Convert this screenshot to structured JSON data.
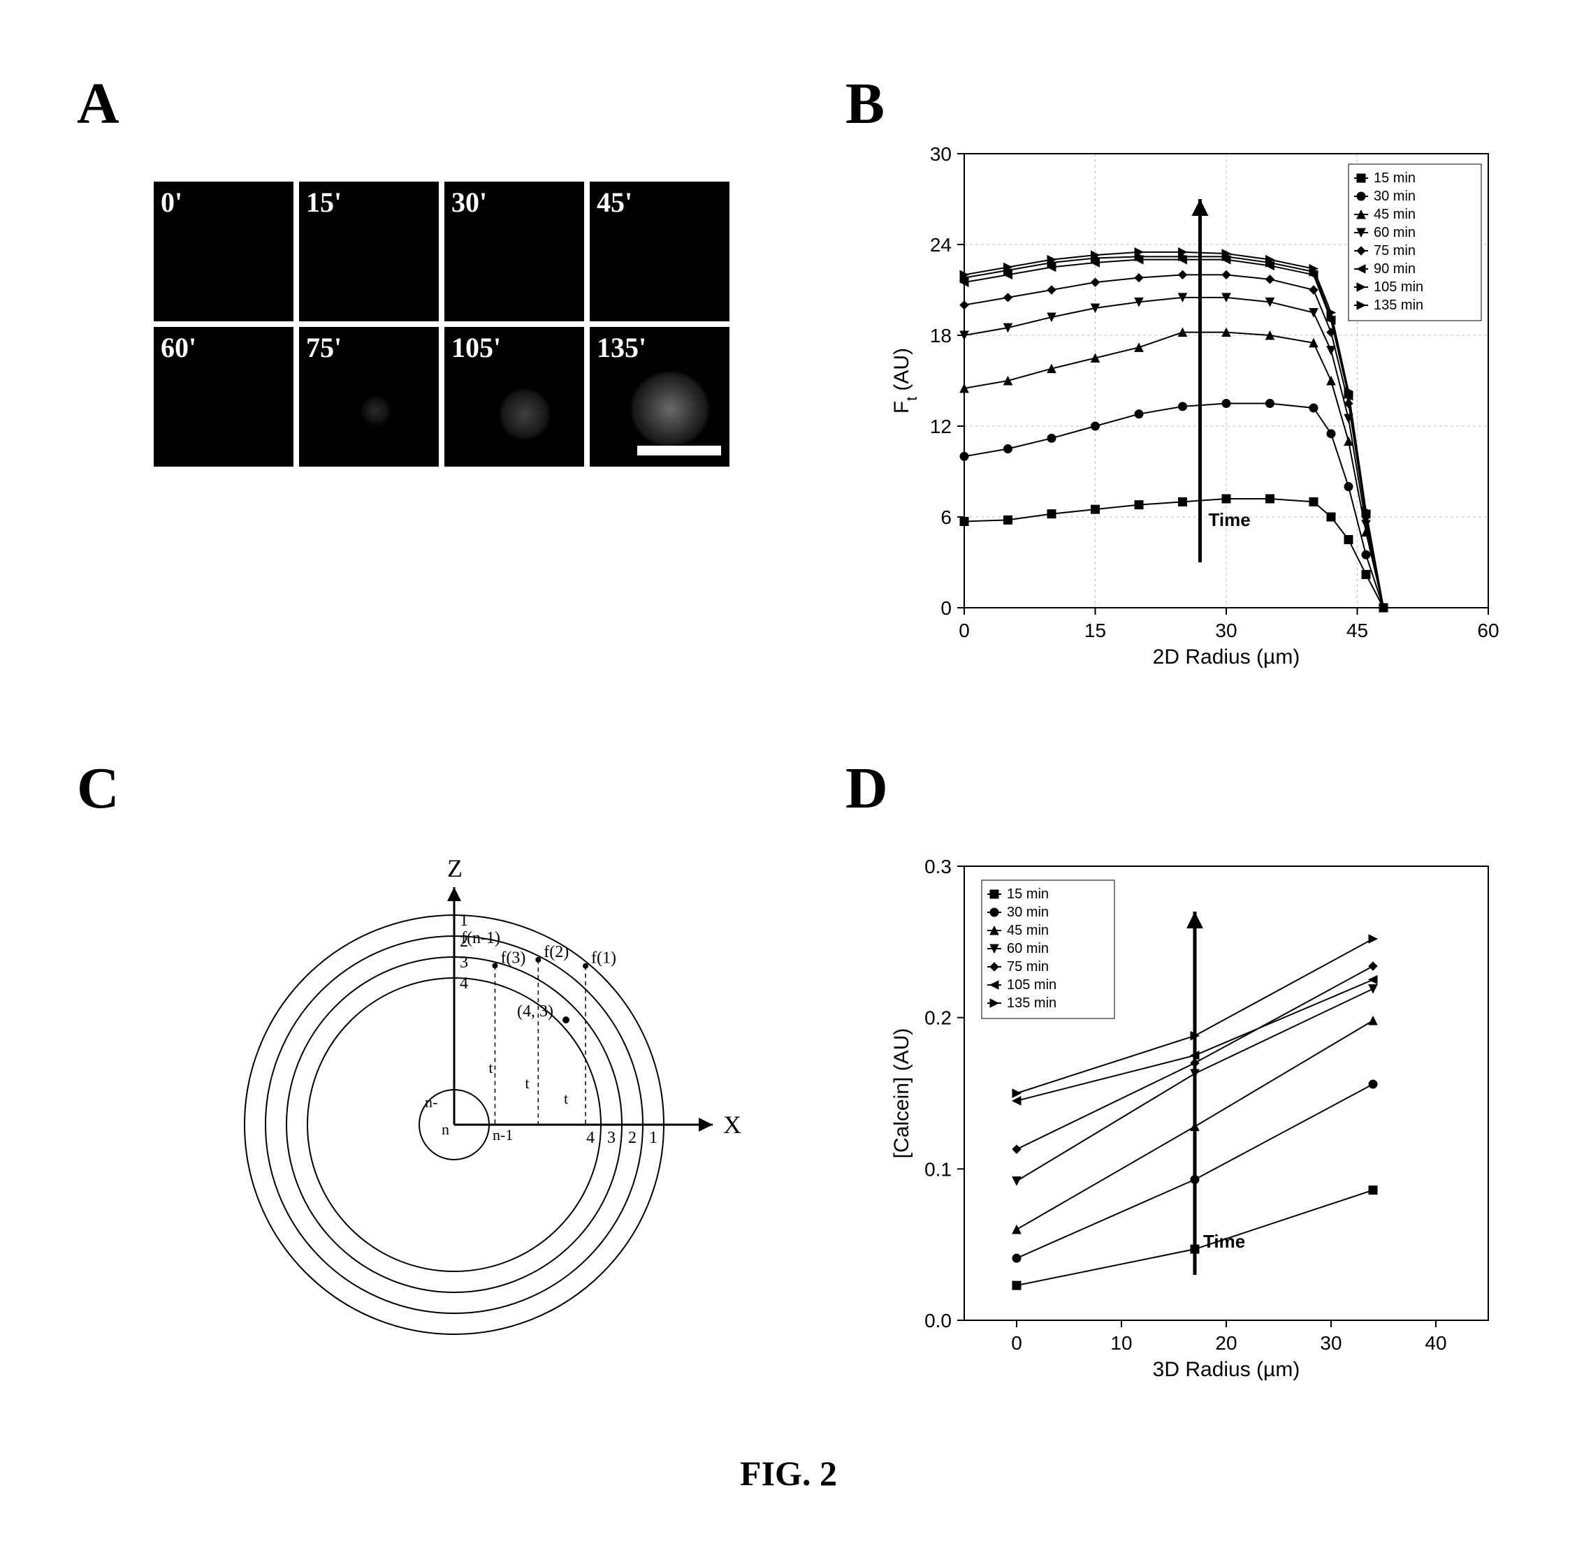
{
  "panels": {
    "A": "A",
    "B": "B",
    "C": "C",
    "D": "D"
  },
  "figure_caption": "FIG. 2",
  "panel_a": {
    "time_labels": [
      "0'",
      "15'",
      "30'",
      "45'",
      "60'",
      "75'",
      "105'",
      "135'"
    ],
    "cell_bg": "#000000",
    "label_color": "#ffffff",
    "label_fontsize": 40,
    "scalebar_color": "#ffffff"
  },
  "panel_b": {
    "type": "line",
    "xlabel": "2D Radius (µm)",
    "ylabel": "F_t (AU)",
    "label_fontsize": 30,
    "tick_fontsize": 28,
    "xlim": [
      0,
      60
    ],
    "ylim": [
      0,
      30
    ],
    "xticks": [
      0,
      15,
      30,
      45,
      60
    ],
    "yticks": [
      0,
      6,
      12,
      18,
      24,
      30
    ],
    "grid": true,
    "grid_color": "#c0c0c0",
    "background_color": "#ffffff",
    "time_annotation": "Time",
    "legend_items": [
      "15 min",
      "30 min",
      "45 min",
      "60 min",
      "75 min",
      "90 min",
      "105 min",
      "135 min"
    ],
    "legend_markers": [
      "square",
      "circle",
      "triangle-up",
      "triangle-down",
      "diamond",
      "triangle-left",
      "triangle-right",
      "triangle-right"
    ],
    "series": [
      {
        "name": "15 min",
        "marker": "square",
        "color": "#000000",
        "x": [
          0,
          5,
          10,
          15,
          20,
          25,
          30,
          35,
          40,
          42,
          44,
          46,
          48
        ],
        "y": [
          5.7,
          5.8,
          6.2,
          6.5,
          6.8,
          7.0,
          7.2,
          7.2,
          7.0,
          6.0,
          4.5,
          2.2,
          0
        ]
      },
      {
        "name": "30 min",
        "marker": "circle",
        "color": "#000000",
        "x": [
          0,
          5,
          10,
          15,
          20,
          25,
          30,
          35,
          40,
          42,
          44,
          46,
          48
        ],
        "y": [
          10.0,
          10.5,
          11.2,
          12.0,
          12.8,
          13.3,
          13.5,
          13.5,
          13.2,
          11.5,
          8.0,
          3.5,
          0
        ]
      },
      {
        "name": "45 min",
        "marker": "triangle-up",
        "color": "#000000",
        "x": [
          0,
          5,
          10,
          15,
          20,
          25,
          30,
          35,
          40,
          42,
          44,
          46,
          48
        ],
        "y": [
          14.5,
          15.0,
          15.8,
          16.5,
          17.2,
          18.2,
          18.2,
          18.0,
          17.5,
          15.0,
          11.0,
          5.0,
          0
        ]
      },
      {
        "name": "60 min",
        "marker": "triangle-down",
        "color": "#000000",
        "x": [
          0,
          5,
          10,
          15,
          20,
          25,
          30,
          35,
          40,
          42,
          44,
          46,
          48
        ],
        "y": [
          18.0,
          18.5,
          19.2,
          19.8,
          20.2,
          20.5,
          20.5,
          20.2,
          19.5,
          17.0,
          12.5,
          5.5,
          0
        ]
      },
      {
        "name": "75 min",
        "marker": "diamond",
        "color": "#000000",
        "x": [
          0,
          5,
          10,
          15,
          20,
          25,
          30,
          35,
          40,
          42,
          44,
          46,
          48
        ],
        "y": [
          20.0,
          20.5,
          21.0,
          21.5,
          21.8,
          22.0,
          22.0,
          21.7,
          21.0,
          18.2,
          13.5,
          6.0,
          0
        ]
      },
      {
        "name": "90 min",
        "marker": "triangle-left",
        "color": "#000000",
        "x": [
          0,
          5,
          10,
          15,
          20,
          25,
          30,
          35,
          40,
          42,
          44,
          46,
          48
        ],
        "y": [
          21.5,
          22.0,
          22.5,
          22.8,
          23.0,
          23.0,
          23.0,
          22.6,
          22.0,
          19.0,
          14.0,
          6.2,
          0
        ]
      },
      {
        "name": "105 min",
        "marker": "triangle-right",
        "color": "#000000",
        "x": [
          0,
          5,
          10,
          15,
          20,
          25,
          30,
          35,
          40,
          42,
          44,
          46,
          48
        ],
        "y": [
          21.8,
          22.3,
          22.8,
          23.1,
          23.2,
          23.2,
          23.2,
          22.8,
          22.2,
          19.2,
          14.1,
          6.3,
          0
        ]
      },
      {
        "name": "135 min",
        "marker": "triangle-right",
        "color": "#000000",
        "x": [
          0,
          5,
          10,
          15,
          20,
          25,
          30,
          35,
          40,
          42,
          44,
          46,
          48
        ],
        "y": [
          22.0,
          22.5,
          23.0,
          23.3,
          23.5,
          23.5,
          23.4,
          23.0,
          22.4,
          19.5,
          14.3,
          6.4,
          0
        ]
      }
    ]
  },
  "panel_c": {
    "type": "diagram",
    "x_axis_label": "X",
    "z_axis_label": "Z",
    "shell_labels_z": [
      "1",
      "2",
      "3",
      "4"
    ],
    "shell_labels_x": [
      "1",
      "2",
      "3",
      "4"
    ],
    "f_labels": [
      "f(n-1)",
      "f(3)",
      "f(2)",
      "f(1)"
    ],
    "t_labels": [
      "t",
      "t",
      "t"
    ],
    "center_labels": [
      "n",
      "n-1",
      "n-"
    ],
    "coord_label": "(4, 3)",
    "stroke_color": "#000000",
    "stroke_width": 2
  },
  "panel_d": {
    "type": "line",
    "xlabel": "3D Radius (µm)",
    "ylabel": "[Calcein] (AU)",
    "label_fontsize": 30,
    "tick_fontsize": 28,
    "xlim": [
      -5,
      45
    ],
    "ylim": [
      0.0,
      0.3
    ],
    "xticks": [
      0,
      10,
      20,
      30,
      40
    ],
    "yticks": [
      0.0,
      0.1,
      0.2,
      0.3
    ],
    "ytick_labels": [
      "0.0",
      "0.1",
      "0.2",
      "0.3"
    ],
    "grid": false,
    "background_color": "#ffffff",
    "time_annotation": "Time",
    "legend_items": [
      "15 min",
      "30 min",
      "45 min",
      "60 min",
      "75 min",
      "105 min",
      "135 min"
    ],
    "legend_markers": [
      "square",
      "circle",
      "triangle-up",
      "triangle-down",
      "diamond",
      "triangle-left",
      "triangle-right"
    ],
    "series": [
      {
        "name": "15 min",
        "marker": "square",
        "color": "#000000",
        "x": [
          0,
          17,
          34
        ],
        "y": [
          0.023,
          0.047,
          0.086
        ]
      },
      {
        "name": "30 min",
        "marker": "circle",
        "color": "#000000",
        "x": [
          0,
          17,
          34
        ],
        "y": [
          0.041,
          0.093,
          0.156
        ]
      },
      {
        "name": "45 min",
        "marker": "triangle-up",
        "color": "#000000",
        "x": [
          0,
          17,
          34
        ],
        "y": [
          0.06,
          0.128,
          0.198
        ]
      },
      {
        "name": "60 min",
        "marker": "triangle-down",
        "color": "#000000",
        "x": [
          0,
          17,
          34
        ],
        "y": [
          0.092,
          0.163,
          0.219
        ]
      },
      {
        "name": "75 min",
        "marker": "diamond",
        "color": "#000000",
        "x": [
          0,
          17,
          34
        ],
        "y": [
          0.113,
          0.17,
          0.234
        ]
      },
      {
        "name": "105 min",
        "marker": "triangle-left",
        "color": "#000000",
        "x": [
          0,
          17,
          34
        ],
        "y": [
          0.145,
          0.175,
          0.225
        ]
      },
      {
        "name": "135 min",
        "marker": "triangle-right",
        "color": "#000000",
        "x": [
          0,
          17,
          34
        ],
        "y": [
          0.15,
          0.188,
          0.252
        ]
      }
    ]
  }
}
